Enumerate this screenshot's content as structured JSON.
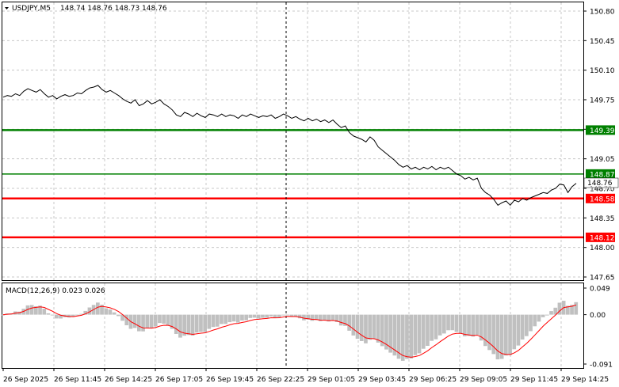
{
  "header": {
    "symbol": "USDJPY,M5",
    "ohlc": "148.74 148.76 148.73 148.76"
  },
  "price_axis": {
    "ticks": [
      "150.80",
      "150.45",
      "150.10",
      "149.75",
      "149.40",
      "149.05",
      "148.70",
      "148.35",
      "148.00",
      "147.65"
    ],
    "current_price": "148.76",
    "current_price_shadow": "148.70"
  },
  "levels": [
    {
      "label": "149.39",
      "color": "#008000",
      "kind": "green-thick"
    },
    {
      "label": "148.87",
      "color": "#008000",
      "kind": "green-thin"
    },
    {
      "label": "148.58",
      "color": "#ff0000",
      "kind": "red"
    },
    {
      "label": "148.12",
      "color": "#ff0000",
      "kind": "red"
    }
  ],
  "macd": {
    "label": "MACD(12,26,9) 0.023 0.026",
    "ticks": [
      "0.049",
      "0.00",
      "-0.091"
    ]
  },
  "time_axis": {
    "ticks": [
      "26 Sep 2025",
      "26 Sep 11:45",
      "26 Sep 14:25",
      "26 Sep 17:05",
      "26 Sep 19:45",
      "26 Sep 22:25",
      "29 Sep 01:05",
      "29 Sep 03:45",
      "29 Sep 06:25",
      "29 Sep 09:05",
      "29 Sep 11:45",
      "29 Sep 14:25"
    ]
  },
  "colors": {
    "price_line": "#000000",
    "signal_line": "#ff0000",
    "histogram": "#c0c0c0",
    "grid": "#c8c8c8"
  },
  "chart_data": {
    "type": "line",
    "series": [
      {
        "values": [
          149.78,
          149.8,
          149.79,
          149.82,
          149.8,
          149.85,
          149.88,
          149.86,
          149.84,
          149.87,
          149.82,
          149.78,
          149.8,
          149.76,
          149.79,
          149.81,
          149.79,
          149.8,
          149.83,
          149.82,
          149.86,
          149.89,
          149.9,
          149.92,
          149.87,
          149.84,
          149.86,
          149.83,
          149.8,
          149.76,
          149.73,
          149.71,
          149.75,
          149.68,
          149.7,
          149.74,
          149.7,
          149.72,
          149.75,
          149.7,
          149.67,
          149.63,
          149.57,
          149.55,
          149.6,
          149.58,
          149.55,
          149.59,
          149.56,
          149.54,
          149.58,
          149.57,
          149.55,
          149.58,
          149.55,
          149.57,
          149.56,
          149.53,
          149.57,
          149.55,
          149.58,
          149.56,
          149.54,
          149.56,
          149.55,
          149.57,
          149.53,
          149.55,
          149.58,
          149.56,
          149.53,
          149.55,
          149.52,
          149.5,
          149.53,
          149.5,
          149.52,
          149.49,
          149.51,
          149.48,
          149.51,
          149.46,
          149.42,
          149.44,
          149.36,
          149.32,
          149.3,
          149.28,
          149.25,
          149.31,
          149.27,
          149.19,
          149.15,
          149.11,
          149.07,
          149.03,
          148.98,
          148.95,
          148.97,
          148.93,
          148.95,
          148.92,
          148.95,
          148.93,
          148.96,
          148.92,
          148.95,
          148.93,
          148.95,
          148.91,
          148.87,
          148.85,
          148.81,
          148.83,
          148.8,
          148.82,
          148.7,
          148.65,
          148.62,
          148.57,
          148.5,
          148.53,
          148.55,
          148.5,
          148.56,
          148.54,
          148.58,
          148.56,
          148.59,
          148.61,
          148.63,
          148.65,
          148.64,
          148.68,
          148.7,
          148.75,
          148.74,
          148.65,
          148.72,
          148.76
        ]
      }
    ],
    "ylim": [
      147.65,
      150.8
    ],
    "macd_ylim": [
      -0.091,
      0.049
    ]
  }
}
